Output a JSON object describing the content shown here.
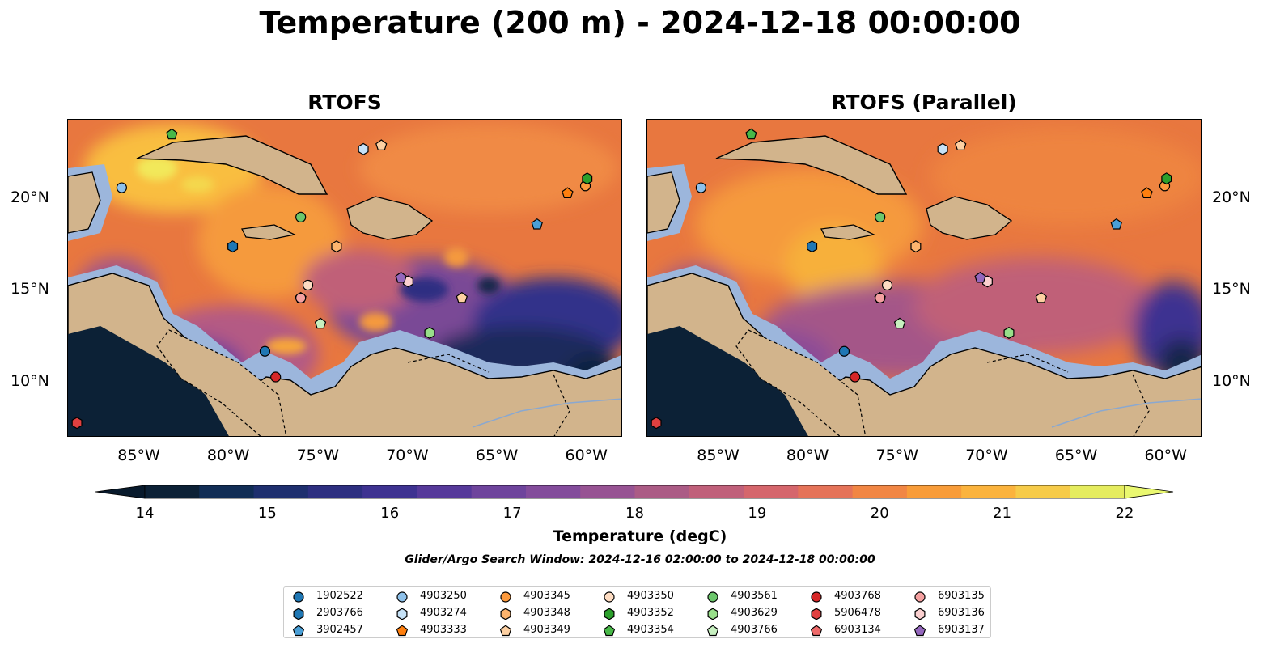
{
  "title": "Temperature (200 m) - 2024-12-18 00:00:00",
  "panels": [
    {
      "title": "RTOFS"
    },
    {
      "title": "RTOFS (Parallel)"
    }
  ],
  "lon_ticks": [
    "85°W",
    "80°W",
    "75°W",
    "70°W",
    "65°W",
    "60°W"
  ],
  "lat_ticks": [
    "20°N",
    "15°N",
    "10°N"
  ],
  "colorbar": {
    "label": "Temperature (degC)",
    "ticks": [
      "14",
      "15",
      "16",
      "17",
      "18",
      "19",
      "20",
      "21",
      "22"
    ],
    "min": 14,
    "max": 22,
    "step": 0.5,
    "colors": [
      "#0c2136",
      "#112d55",
      "#1e2f6e",
      "#2d2f80",
      "#3e3291",
      "#56399a",
      "#6e449c",
      "#834c9b",
      "#975393",
      "#ab5b85",
      "#c0607a",
      "#d5666c",
      "#e57359",
      "#f18644",
      "#f89c39",
      "#fbb33d",
      "#f6cb49",
      "#e5ec5f"
    ]
  },
  "search_window": "Glider/Argo Search Window: 2024-12-16 02:00:00 to 2024-12-18 00:00:00",
  "legend": [
    {
      "id": "1902522",
      "marker": "circle",
      "color": "#1f77b4"
    },
    {
      "id": "2903766",
      "marker": "hexagon",
      "color": "#1f77b4"
    },
    {
      "id": "3902457",
      "marker": "pentagon",
      "color": "#4a9fd6"
    },
    {
      "id": "4903250",
      "marker": "circle",
      "color": "#8ec1ea"
    },
    {
      "id": "4903274",
      "marker": "hexagon",
      "color": "#c6e2f7"
    },
    {
      "id": "4903333",
      "marker": "pentagon",
      "color": "#ff7f0e"
    },
    {
      "id": "4903345",
      "marker": "circle",
      "color": "#fd9a3d"
    },
    {
      "id": "4903348",
      "marker": "hexagon",
      "color": "#fdb46e"
    },
    {
      "id": "4903349",
      "marker": "pentagon",
      "color": "#fdd0a2"
    },
    {
      "id": "4903350",
      "marker": "circle",
      "color": "#fddcc2"
    },
    {
      "id": "4903352",
      "marker": "hexagon",
      "color": "#2ca02c"
    },
    {
      "id": "4903354",
      "marker": "pentagon",
      "color": "#48b848"
    },
    {
      "id": "4903561",
      "marker": "circle",
      "color": "#6cc76c"
    },
    {
      "id": "4903629",
      "marker": "hexagon",
      "color": "#98df8a"
    },
    {
      "id": "4903766",
      "marker": "pentagon",
      "color": "#c7f0c0"
    },
    {
      "id": "4903768",
      "marker": "circle",
      "color": "#d62728"
    },
    {
      "id": "5906478",
      "marker": "hexagon",
      "color": "#e04040"
    },
    {
      "id": "6903134",
      "marker": "pentagon",
      "color": "#ee6a6a"
    },
    {
      "id": "6903135",
      "marker": "circle",
      "color": "#f4a0a0"
    },
    {
      "id": "6903136",
      "marker": "hexagon",
      "color": "#fbd0d0"
    },
    {
      "id": "6903137",
      "marker": "pentagon",
      "color": "#9467bd"
    }
  ],
  "observations": [
    {
      "id": "1902522",
      "lon": -78.0,
      "lat": 11.7
    },
    {
      "id": "2903766",
      "lon": -79.8,
      "lat": 17.4
    },
    {
      "id": "3902457",
      "lon": -62.8,
      "lat": 18.6
    },
    {
      "id": "4903250",
      "lon": -86.0,
      "lat": 20.6
    },
    {
      "id": "4903274",
      "lon": -72.5,
      "lat": 22.7
    },
    {
      "id": "4903333",
      "lon": -61.1,
      "lat": 20.3
    },
    {
      "id": "4903345",
      "lon": -60.1,
      "lat": 20.7
    },
    {
      "id": "4903348",
      "lon": -74.0,
      "lat": 17.4
    },
    {
      "id": "4903349",
      "lon": -71.5,
      "lat": 22.9
    },
    {
      "id": "4903350",
      "lon": -75.6,
      "lat": 15.3
    },
    {
      "id": "4903352",
      "lon": -60.0,
      "lat": 21.1
    },
    {
      "id": "4903354",
      "lon": -83.2,
      "lat": 23.5
    },
    {
      "id": "4903561",
      "lon": -76.0,
      "lat": 19.0
    },
    {
      "id": "4903629",
      "lon": -68.8,
      "lat": 12.7
    },
    {
      "id": "4903766",
      "lon": -74.9,
      "lat": 13.2
    },
    {
      "id": "4903768",
      "lon": -77.4,
      "lat": 10.3
    },
    {
      "id": "5906478",
      "lon": -88.5,
      "lat": 7.8
    },
    {
      "id": "6903134",
      "lon": -76.0,
      "lat": 14.6
    },
    {
      "id": "6903135",
      "lon": -76.0,
      "lat": 14.6
    },
    {
      "id": "6903136",
      "lon": -70.0,
      "lat": 15.5
    },
    {
      "id": "6903137",
      "lon": -70.4,
      "lat": 15.7
    },
    {
      "id": "4903349",
      "lon": -67.0,
      "lat": 14.6
    }
  ]
}
